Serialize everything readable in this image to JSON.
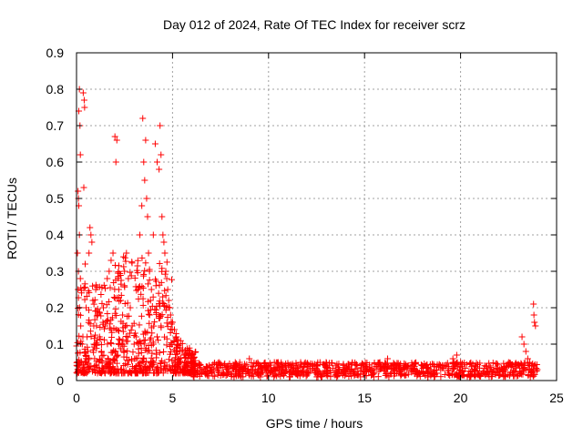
{
  "chart_data": {
    "type": "scatter",
    "title": "Day 012 of 2024, Rate Of TEC Index for receiver scrz",
    "xlabel": "GPS time / hours",
    "ylabel": "ROTI / TECUs",
    "xlim": [
      0,
      25
    ],
    "ylim": [
      0,
      0.9
    ],
    "xticks": [
      0,
      5,
      10,
      15,
      20,
      25
    ],
    "yticks": [
      0,
      0.1,
      0.2,
      0.3,
      0.4,
      0.5,
      0.6,
      0.7,
      0.8,
      0.9
    ],
    "xtick_labels": [
      "0",
      "5",
      "10",
      "15",
      "20",
      "25"
    ],
    "ytick_labels": [
      "0",
      "0.1",
      "0.2",
      "0.3",
      "0.4",
      "0.5",
      "0.6",
      "0.7",
      "0.8",
      "0.9"
    ],
    "grid": true,
    "marker": "+",
    "marker_color": "#ff0000",
    "series": [
      {
        "points": [
          [
            0.05,
            0.35
          ],
          [
            0.08,
            0.52
          ],
          [
            0.1,
            0.5
          ],
          [
            0.12,
            0.74
          ],
          [
            0.15,
            0.8
          ],
          [
            0.18,
            0.7
          ],
          [
            0.2,
            0.62
          ],
          [
            0.12,
            0.48
          ],
          [
            0.15,
            0.4
          ],
          [
            0.1,
            0.3
          ],
          [
            0.08,
            0.25
          ],
          [
            0.2,
            0.28
          ],
          [
            0.22,
            0.15
          ],
          [
            0.25,
            0.05
          ],
          [
            0.3,
            0.1
          ],
          [
            0.35,
            0.79
          ],
          [
            0.4,
            0.77
          ],
          [
            0.42,
            0.75
          ],
          [
            0.38,
            0.53
          ],
          [
            0.45,
            0.32
          ],
          [
            0.5,
            0.2
          ],
          [
            0.55,
            0.12
          ],
          [
            0.6,
            0.08
          ],
          [
            0.65,
            0.35
          ],
          [
            0.7,
            0.42
          ],
          [
            0.75,
            0.4
          ],
          [
            0.8,
            0.38
          ],
          [
            0.85,
            0.22
          ],
          [
            0.9,
            0.15
          ],
          [
            0.95,
            0.1
          ],
          [
            1.0,
            0.25
          ],
          [
            1.1,
            0.18
          ],
          [
            1.2,
            0.12
          ],
          [
            1.3,
            0.08
          ],
          [
            1.4,
            0.2
          ],
          [
            1.5,
            0.15
          ],
          [
            1.6,
            0.28
          ],
          [
            1.7,
            0.3
          ],
          [
            1.8,
            0.33
          ],
          [
            1.9,
            0.35
          ],
          [
            2.0,
            0.67
          ],
          [
            2.05,
            0.6
          ],
          [
            2.1,
            0.66
          ],
          [
            2.2,
            0.25
          ],
          [
            2.3,
            0.22
          ],
          [
            2.4,
            0.18
          ],
          [
            2.5,
            0.3
          ],
          [
            2.6,
            0.35
          ],
          [
            2.7,
            0.28
          ],
          [
            2.8,
            0.2
          ],
          [
            2.9,
            0.15
          ],
          [
            3.0,
            0.1
          ],
          [
            3.1,
            0.12
          ],
          [
            3.2,
            0.25
          ],
          [
            3.3,
            0.4
          ],
          [
            3.4,
            0.48
          ],
          [
            3.45,
            0.72
          ],
          [
            3.5,
            0.6
          ],
          [
            3.55,
            0.55
          ],
          [
            3.6,
            0.66
          ],
          [
            3.65,
            0.5
          ],
          [
            3.7,
            0.45
          ],
          [
            3.75,
            0.35
          ],
          [
            3.8,
            0.3
          ],
          [
            3.85,
            0.22
          ],
          [
            3.9,
            0.25
          ],
          [
            4.0,
            0.4
          ],
          [
            4.1,
            0.65
          ],
          [
            4.2,
            0.6
          ],
          [
            4.3,
            0.58
          ],
          [
            4.35,
            0.7
          ],
          [
            4.4,
            0.62
          ],
          [
            4.45,
            0.45
          ],
          [
            4.5,
            0.4
          ],
          [
            4.55,
            0.38
          ],
          [
            4.6,
            0.35
          ],
          [
            4.65,
            0.3
          ],
          [
            4.7,
            0.28
          ],
          [
            4.75,
            0.25
          ],
          [
            4.8,
            0.22
          ],
          [
            4.85,
            0.2
          ],
          [
            4.9,
            0.18
          ],
          [
            5.0,
            0.16
          ],
          [
            5.1,
            0.14
          ],
          [
            5.2,
            0.12
          ],
          [
            5.3,
            0.1
          ],
          [
            5.4,
            0.09
          ],
          [
            5.5,
            0.08
          ],
          [
            5.6,
            0.07
          ],
          [
            5.8,
            0.06
          ],
          [
            6.0,
            0.05
          ],
          [
            3.3,
            0.03
          ],
          [
            3.5,
            0.05
          ],
          [
            3.7,
            0.08
          ],
          [
            4.0,
            0.1
          ],
          [
            4.2,
            0.12
          ],
          [
            4.4,
            0.15
          ],
          [
            4.6,
            0.05
          ],
          [
            23.2,
            0.12
          ],
          [
            23.3,
            0.1
          ],
          [
            23.4,
            0.08
          ],
          [
            23.5,
            0.06
          ],
          [
            23.8,
            0.21
          ],
          [
            23.82,
            0.18
          ],
          [
            23.85,
            0.16
          ],
          [
            23.9,
            0.15
          ],
          [
            24.0,
            0.03
          ],
          [
            23.6,
            0.05
          ],
          [
            23.7,
            0.04
          ],
          [
            19.6,
            0.06
          ],
          [
            19.8,
            0.07
          ],
          [
            20.0,
            0.05
          ],
          [
            15.8,
            0.05
          ],
          [
            16.2,
            0.06
          ],
          [
            12.5,
            0.04
          ],
          [
            13.0,
            0.05
          ],
          [
            17.5,
            0.04
          ],
          [
            21.5,
            0.04
          ],
          [
            22.5,
            0.05
          ],
          [
            8.5,
            0.05
          ],
          [
            9.0,
            0.06
          ],
          [
            10.5,
            0.05
          ]
        ]
      }
    ],
    "band": {
      "x_start": 6.0,
      "x_end": 24.0,
      "y_low": 0.01,
      "y_high": 0.05,
      "count": 900
    }
  }
}
